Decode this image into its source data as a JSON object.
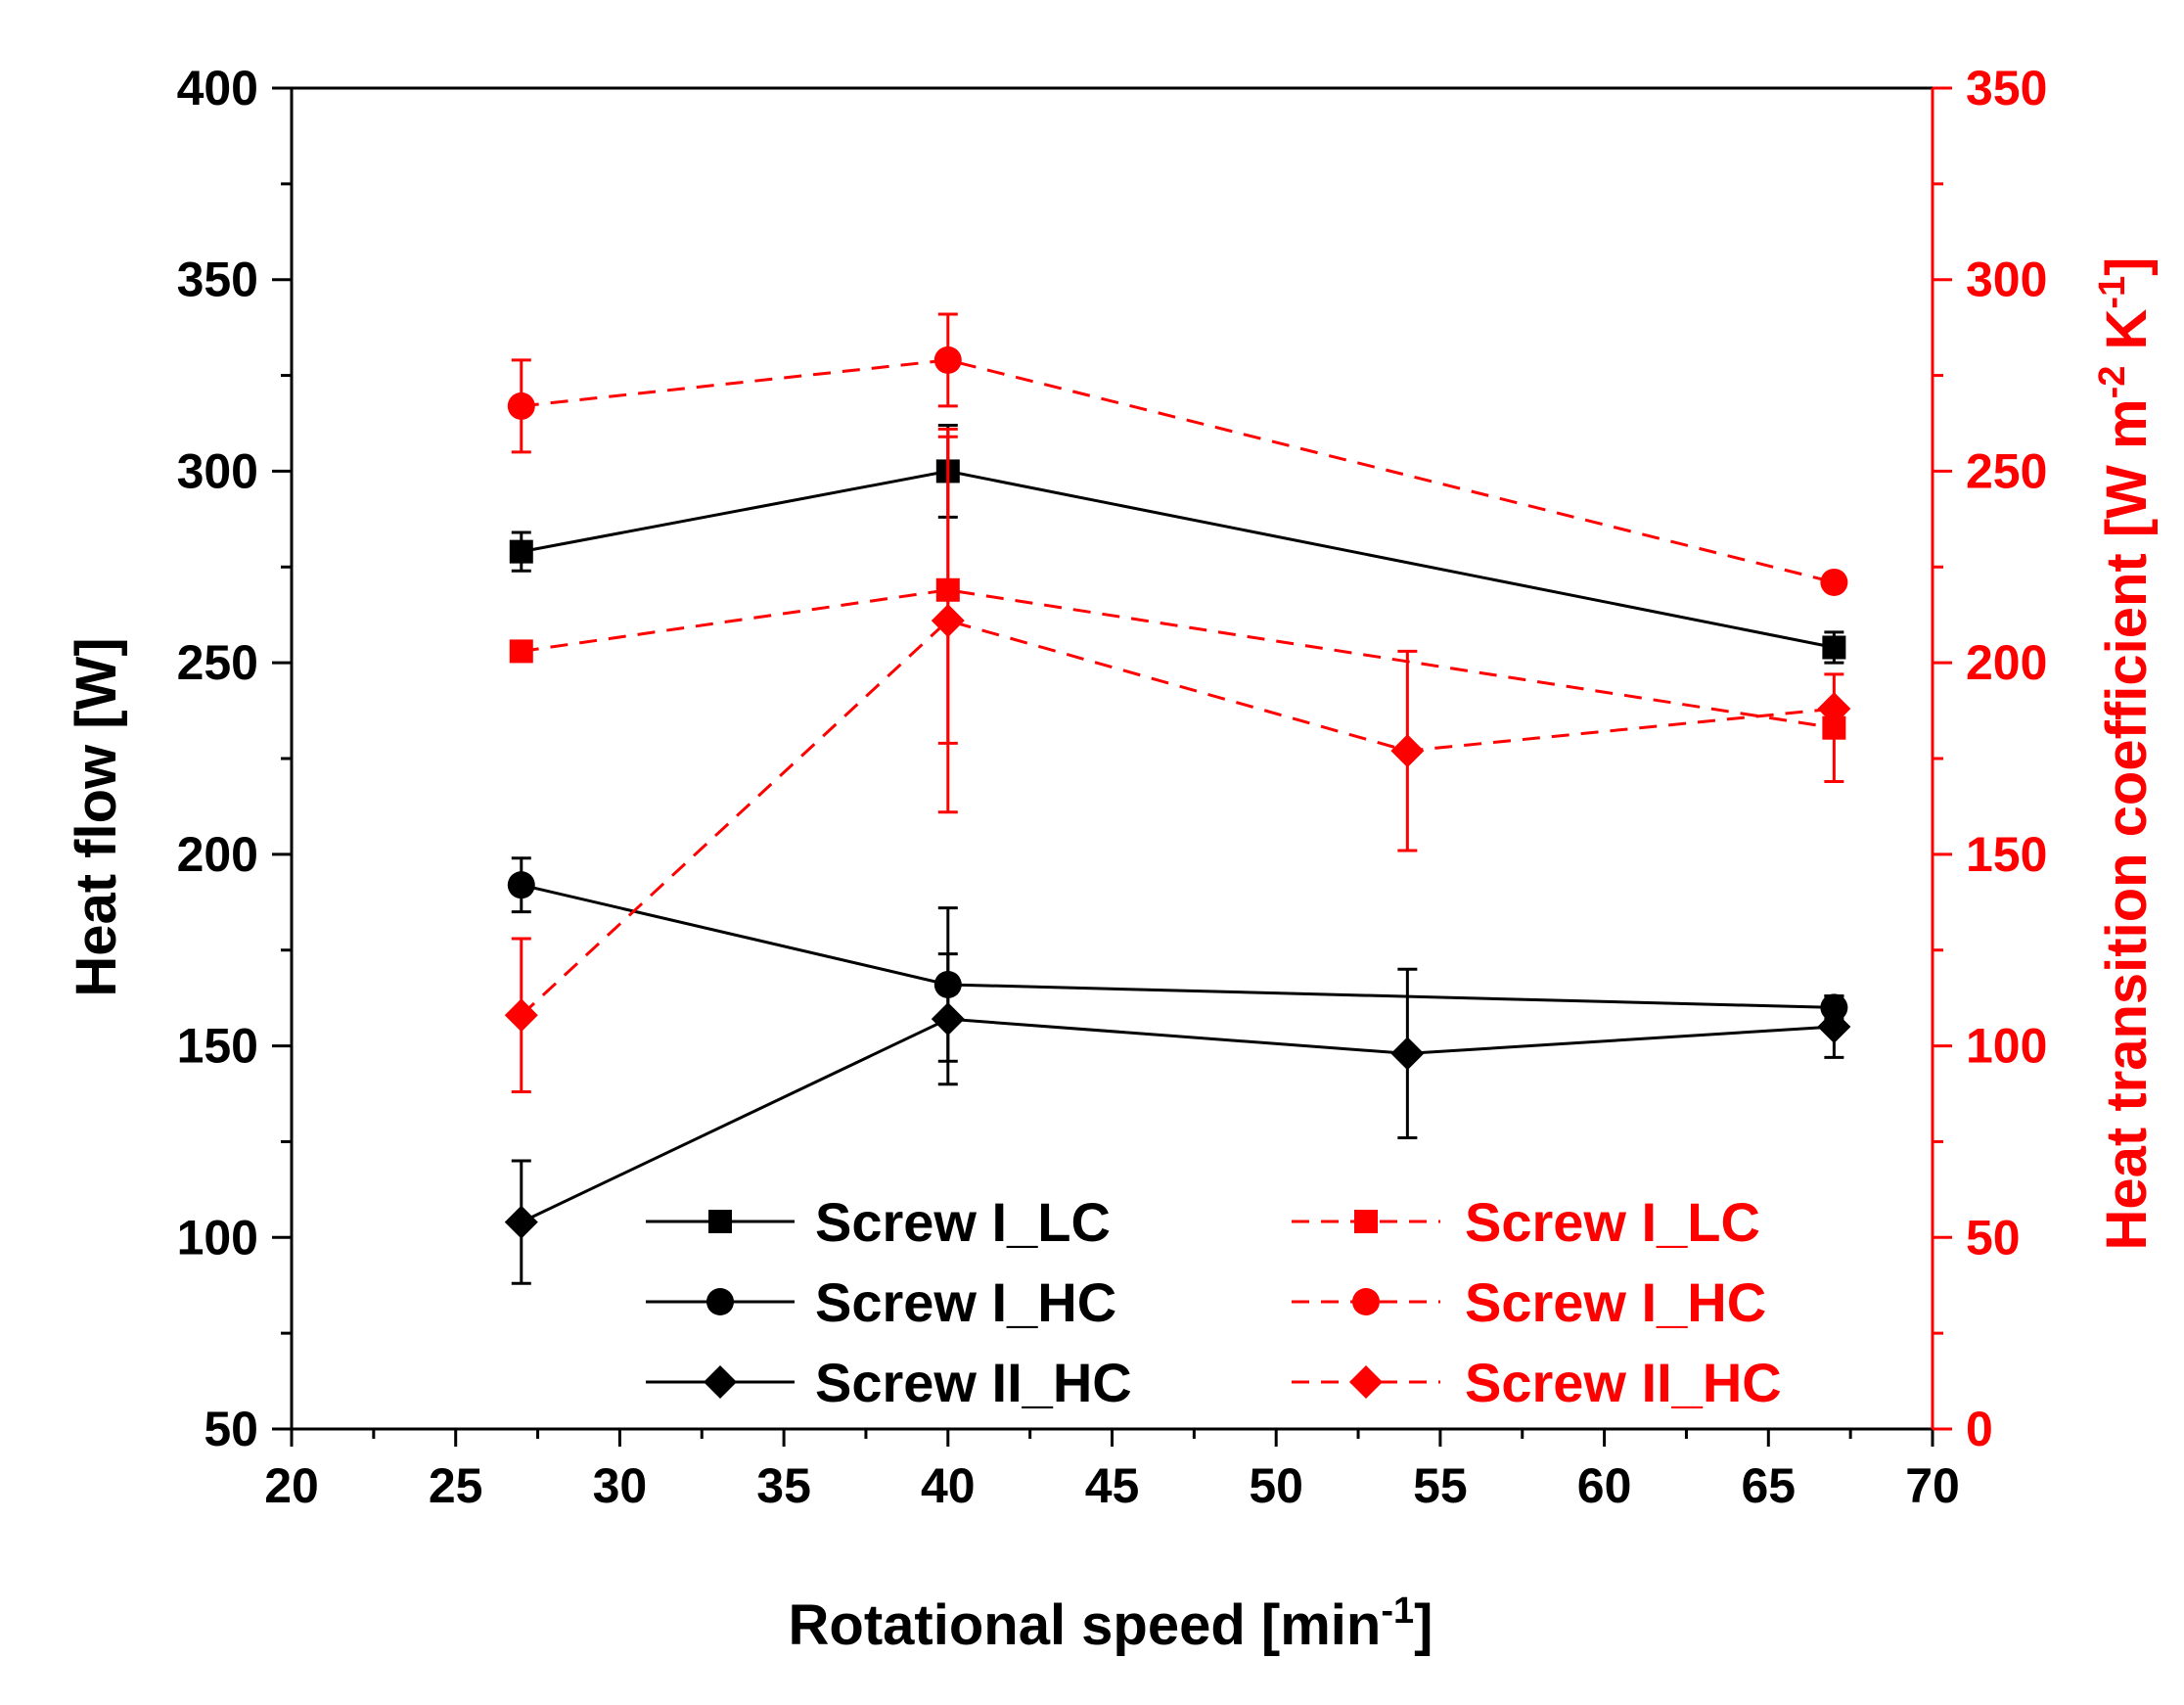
{
  "chart_data": {
    "type": "line",
    "x_axis": {
      "label": "Rotational speed [min",
      "label_superscript": "-1",
      "label_suffix": "]",
      "range": [
        20,
        70
      ],
      "ticks": [
        "20",
        "25",
        "30",
        "35",
        "40",
        "45",
        "50",
        "55",
        "60",
        "65",
        "70"
      ]
    },
    "y_left": {
      "label": "Heat flow [W]",
      "range": [
        50,
        400
      ],
      "ticks": [
        "50",
        "100",
        "150",
        "200",
        "250",
        "300",
        "350",
        "400"
      ],
      "color": "#000000"
    },
    "y_right": {
      "label_part1": "Heat transition coefficient [W m",
      "label_sup1": "-2",
      "label_part2": " K",
      "label_sup2": "-1",
      "label_part3": "]",
      "range": [
        0,
        350
      ],
      "ticks": [
        "0",
        "50",
        "100",
        "150",
        "200",
        "250",
        "300",
        "350"
      ],
      "color": "#ff0000"
    },
    "series": [
      {
        "name": "Screw I_LC",
        "axis": "left",
        "color": "#000000",
        "dashed": false,
        "marker": "square",
        "x": [
          27,
          40,
          67
        ],
        "y": [
          279,
          300,
          254
        ],
        "err": [
          5,
          12,
          4
        ]
      },
      {
        "name": "Screw I_HC",
        "axis": "left",
        "color": "#000000",
        "dashed": false,
        "marker": "circle",
        "x": [
          27,
          40,
          67
        ],
        "y": [
          192,
          166,
          160
        ],
        "err": [
          7,
          20,
          3
        ]
      },
      {
        "name": "Screw II_HC",
        "axis": "left",
        "color": "#000000",
        "dashed": false,
        "marker": "diamond",
        "x": [
          27,
          40,
          54,
          67
        ],
        "y": [
          104,
          157,
          148,
          155
        ],
        "err": [
          16,
          17,
          22,
          8
        ]
      },
      {
        "name": "Screw I_LC",
        "axis": "right",
        "color": "#ff0000",
        "dashed": true,
        "marker": "square",
        "x": [
          27,
          40,
          67
        ],
        "y": [
          203,
          219,
          183
        ],
        "err": [
          0,
          40,
          14
        ]
      },
      {
        "name": "Screw I_HC",
        "axis": "right",
        "color": "#ff0000",
        "dashed": true,
        "marker": "circle",
        "x": [
          27,
          40,
          67
        ],
        "y": [
          267,
          279,
          221
        ],
        "err": [
          12,
          12,
          0
        ]
      },
      {
        "name": "Screw II_HC",
        "axis": "right",
        "color": "#ff0000",
        "dashed": true,
        "marker": "diamond",
        "x": [
          27,
          40,
          54,
          67
        ],
        "y": [
          108,
          211,
          177,
          188
        ],
        "err": [
          20,
          50,
          26,
          0
        ]
      }
    ]
  }
}
